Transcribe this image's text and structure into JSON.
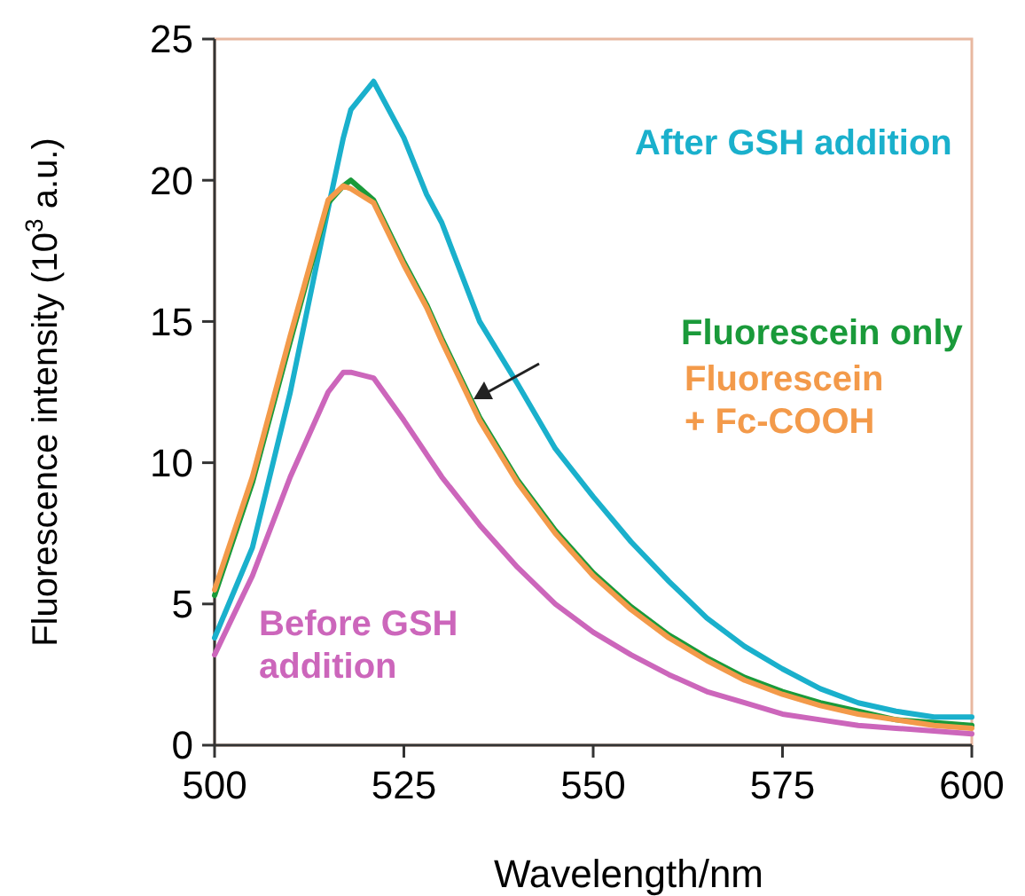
{
  "chart_data": {
    "type": "line",
    "xlabel": "Wavelength/nm",
    "ylabel": "Fluorescence intensity (10$^{3}$ a.u.)",
    "xlim": [
      500,
      600
    ],
    "ylim": [
      0,
      25
    ],
    "xticks": [
      500,
      525,
      550,
      575,
      600
    ],
    "yticks": [
      0,
      5,
      10,
      15,
      20,
      25
    ],
    "grid": false,
    "marker": "none",
    "line_style": "solid",
    "x": [
      500,
      505,
      510,
      515,
      517,
      518,
      521,
      525,
      528,
      530,
      535,
      540,
      545,
      550,
      555,
      560,
      565,
      570,
      575,
      580,
      585,
      590,
      595,
      600
    ],
    "series": [
      {
        "name": "After GSH addition",
        "color": "#1ab0cc",
        "values": [
          3.8,
          7,
          12.5,
          19,
          21.5,
          22.5,
          23.5,
          21.5,
          19.5,
          18.5,
          15,
          12.8,
          10.5,
          8.8,
          7.2,
          5.8,
          4.5,
          3.5,
          2.7,
          2,
          1.5,
          1.2,
          1,
          1
        ]
      },
      {
        "name": "Fluorescein only",
        "color": "#1a9a3a",
        "values": [
          5.3,
          9.3,
          14.3,
          19.2,
          19.8,
          20,
          19.3,
          17.1,
          15.6,
          14.4,
          11.6,
          9.4,
          7.6,
          6.1,
          4.9,
          3.9,
          3.1,
          2.4,
          1.9,
          1.5,
          1.2,
          0.9,
          0.8,
          0.7
        ]
      },
      {
        "name": "Fluorescein\n+ Fc-COOH",
        "color": "#f39a4a",
        "values": [
          5.5,
          9.5,
          14.5,
          19.3,
          19.8,
          19.7,
          19.2,
          17,
          15.5,
          14.3,
          11.5,
          9.3,
          7.5,
          6,
          4.8,
          3.8,
          3,
          2.3,
          1.8,
          1.4,
          1.1,
          0.9,
          0.7,
          0.6
        ]
      },
      {
        "name": "Before GSH\naddition",
        "color": "#cc66bb",
        "values": [
          3.2,
          6,
          9.5,
          12.5,
          13.2,
          13.2,
          13,
          11.5,
          10.3,
          9.5,
          7.8,
          6.3,
          5,
          4,
          3.2,
          2.5,
          1.9,
          1.5,
          1.1,
          0.9,
          0.7,
          0.6,
          0.5,
          0.4
        ]
      }
    ]
  }
}
